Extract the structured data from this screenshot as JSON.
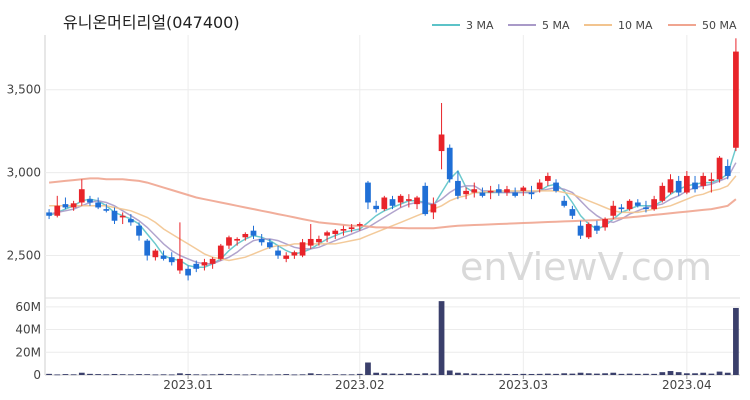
{
  "chart_data": {
    "title": "유니온머티리얼(047400)",
    "watermark": "enViewV.com",
    "legend": [
      {
        "label": "3 MA",
        "color": "#5cc3c8"
      },
      {
        "label": "5 MA",
        "color": "#a99ac8"
      },
      {
        "label": "10 MA",
        "color": "#f2c48f"
      },
      {
        "label": "50 MA",
        "color": "#f0a590"
      }
    ],
    "price_axis": {
      "ticks": [
        "2,500",
        "3,000",
        "3,500"
      ],
      "tick_values": [
        2500,
        3000,
        3500
      ],
      "ylim": [
        2250,
        3830
      ]
    },
    "volume_axis": {
      "ticks": [
        "0",
        "20M",
        "40M",
        "60M"
      ],
      "tick_values": [
        0,
        20,
        40,
        60
      ],
      "unit": "M",
      "ylim": [
        0,
        66
      ]
    },
    "x_axis": {
      "ticks": [
        "2023.01",
        "2023.02",
        "2023.03",
        "2023.04"
      ],
      "tick_index": [
        17,
        38,
        58,
        78
      ]
    },
    "colors": {
      "up": "#e8242a",
      "down": "#1f6fd6",
      "volume": "#3a3f6b",
      "grid": "#ececec",
      "text": "#444444"
    },
    "type": "candlestick",
    "candles": [
      [
        2760,
        2780,
        2720,
        2740
      ],
      [
        2740,
        2860,
        2730,
        2800
      ],
      [
        2810,
        2850,
        2780,
        2790
      ],
      [
        2790,
        2830,
        2770,
        2815
      ],
      [
        2820,
        2960,
        2800,
        2900
      ],
      [
        2840,
        2860,
        2800,
        2820
      ],
      [
        2820,
        2850,
        2780,
        2790
      ],
      [
        2780,
        2810,
        2760,
        2770
      ],
      [
        2770,
        2790,
        2690,
        2710
      ],
      [
        2730,
        2760,
        2690,
        2740
      ],
      [
        2720,
        2750,
        2680,
        2700
      ],
      [
        2680,
        2700,
        2590,
        2620
      ],
      [
        2590,
        2600,
        2470,
        2500
      ],
      [
        2490,
        2540,
        2470,
        2530
      ],
      [
        2500,
        2530,
        2470,
        2480
      ],
      [
        2490,
        2520,
        2440,
        2460
      ],
      [
        2410,
        2700,
        2390,
        2480
      ],
      [
        2420,
        2440,
        2350,
        2380
      ],
      [
        2450,
        2470,
        2400,
        2420
      ],
      [
        2440,
        2480,
        2410,
        2460
      ],
      [
        2450,
        2490,
        2420,
        2480
      ],
      [
        2480,
        2570,
        2470,
        2560
      ],
      [
        2560,
        2620,
        2540,
        2610
      ],
      [
        2590,
        2610,
        2560,
        2600
      ],
      [
        2610,
        2640,
        2590,
        2630
      ],
      [
        2650,
        2680,
        2600,
        2620
      ],
      [
        2600,
        2630,
        2560,
        2580
      ],
      [
        2580,
        2600,
        2540,
        2550
      ],
      [
        2530,
        2560,
        2480,
        2500
      ],
      [
        2480,
        2520,
        2460,
        2500
      ],
      [
        2500,
        2530,
        2480,
        2520
      ],
      [
        2500,
        2600,
        2490,
        2580
      ],
      [
        2560,
        2690,
        2540,
        2600
      ],
      [
        2580,
        2620,
        2560,
        2600
      ],
      [
        2620,
        2650,
        2580,
        2640
      ],
      [
        2630,
        2660,
        2600,
        2650
      ],
      [
        2650,
        2680,
        2620,
        2660
      ],
      [
        2660,
        2690,
        2640,
        2670
      ],
      [
        2680,
        2700,
        2650,
        2690
      ],
      [
        2940,
        2950,
        2780,
        2820
      ],
      [
        2800,
        2830,
        2760,
        2780
      ],
      [
        2780,
        2860,
        2770,
        2850
      ],
      [
        2840,
        2860,
        2780,
        2800
      ],
      [
        2820,
        2870,
        2790,
        2860
      ],
      [
        2830,
        2870,
        2790,
        2840
      ],
      [
        2810,
        2860,
        2780,
        2850
      ],
      [
        2920,
        2940,
        2740,
        2750
      ],
      [
        2760,
        2850,
        2720,
        2810
      ],
      [
        3130,
        3420,
        3020,
        3230
      ],
      [
        3150,
        3170,
        2940,
        2960
      ],
      [
        2950,
        3010,
        2840,
        2860
      ],
      [
        2870,
        2910,
        2840,
        2890
      ],
      [
        2880,
        2940,
        2850,
        2900
      ],
      [
        2880,
        2910,
        2850,
        2860
      ],
      [
        2880,
        2920,
        2840,
        2890
      ],
      [
        2900,
        2930,
        2860,
        2880
      ],
      [
        2880,
        2920,
        2860,
        2900
      ],
      [
        2880,
        2910,
        2850,
        2860
      ],
      [
        2890,
        2920,
        2860,
        2910
      ],
      [
        2880,
        2920,
        2840,
        2870
      ],
      [
        2900,
        2960,
        2880,
        2940
      ],
      [
        2950,
        3000,
        2920,
        2980
      ],
      [
        2940,
        2960,
        2880,
        2890
      ],
      [
        2830,
        2860,
        2790,
        2800
      ],
      [
        2780,
        2800,
        2720,
        2740
      ],
      [
        2680,
        2710,
        2600,
        2620
      ],
      [
        2610,
        2700,
        2600,
        2690
      ],
      [
        2680,
        2710,
        2630,
        2650
      ],
      [
        2670,
        2730,
        2650,
        2720
      ],
      [
        2740,
        2830,
        2720,
        2800
      ],
      [
        2790,
        2810,
        2760,
        2780
      ],
      [
        2780,
        2840,
        2770,
        2830
      ],
      [
        2820,
        2840,
        2790,
        2800
      ],
      [
        2790,
        2830,
        2760,
        2780
      ],
      [
        2780,
        2860,
        2770,
        2840
      ],
      [
        2830,
        2940,
        2820,
        2920
      ],
      [
        2880,
        2990,
        2870,
        2960
      ],
      [
        2950,
        2980,
        2860,
        2880
      ],
      [
        2880,
        3010,
        2870,
        2980
      ],
      [
        2940,
        2980,
        2880,
        2900
      ],
      [
        2920,
        3000,
        2900,
        2980
      ],
      [
        2950,
        3000,
        2880,
        2960
      ],
      [
        2960,
        3100,
        2940,
        3090
      ],
      [
        3040,
        3080,
        2960,
        2980
      ],
      [
        3150,
        3810,
        3130,
        3730
      ]
    ],
    "ma3": [
      2740,
      2760,
      2780,
      2800,
      2830,
      2840,
      2830,
      2800,
      2760,
      2740,
      2720,
      2690,
      2630,
      2570,
      2500,
      2480,
      2470,
      2440,
      2430,
      2430,
      2450,
      2480,
      2530,
      2570,
      2600,
      2620,
      2610,
      2590,
      2560,
      2530,
      2510,
      2520,
      2540,
      2570,
      2600,
      2620,
      2640,
      2650,
      2660,
      2700,
      2740,
      2770,
      2790,
      2810,
      2830,
      2830,
      2820,
      2800,
      2880,
      2960,
      3010,
      2910,
      2880,
      2880,
      2880,
      2880,
      2880,
      2880,
      2880,
      2880,
      2890,
      2920,
      2930,
      2890,
      2820,
      2740,
      2690,
      2660,
      2680,
      2720,
      2760,
      2780,
      2800,
      2800,
      2800,
      2830,
      2870,
      2900,
      2920,
      2930,
      2940,
      2940,
      2960,
      2990,
      3150
    ],
    "ma5": [
      2750,
      2760,
      2770,
      2780,
      2800,
      2820,
      2830,
      2820,
      2800,
      2770,
      2740,
      2710,
      2670,
      2620,
      2570,
      2530,
      2500,
      2480,
      2460,
      2450,
      2450,
      2470,
      2490,
      2520,
      2560,
      2590,
      2600,
      2600,
      2590,
      2570,
      2550,
      2540,
      2540,
      2550,
      2570,
      2590,
      2610,
      2630,
      2650,
      2670,
      2700,
      2730,
      2760,
      2790,
      2810,
      2820,
      2820,
      2810,
      2840,
      2880,
      2910,
      2920,
      2920,
      2890,
      2890,
      2880,
      2880,
      2880,
      2880,
      2880,
      2890,
      2900,
      2910,
      2900,
      2880,
      2830,
      2780,
      2740,
      2710,
      2700,
      2720,
      2750,
      2770,
      2790,
      2800,
      2810,
      2840,
      2860,
      2890,
      2910,
      2920,
      2930,
      2950,
      2970,
      3060
    ],
    "ma10": [
      2800,
      2800,
      2800,
      2800,
      2800,
      2800,
      2800,
      2800,
      2790,
      2780,
      2770,
      2750,
      2730,
      2700,
      2660,
      2630,
      2600,
      2570,
      2540,
      2510,
      2490,
      2480,
      2470,
      2480,
      2490,
      2510,
      2530,
      2550,
      2560,
      2560,
      2570,
      2570,
      2570,
      2570,
      2570,
      2570,
      2580,
      2590,
      2600,
      2620,
      2640,
      2660,
      2680,
      2700,
      2720,
      2740,
      2760,
      2780,
      2800,
      2830,
      2850,
      2860,
      2880,
      2880,
      2890,
      2890,
      2890,
      2890,
      2890,
      2890,
      2890,
      2890,
      2890,
      2880,
      2870,
      2850,
      2830,
      2810,
      2790,
      2770,
      2760,
      2760,
      2760,
      2770,
      2780,
      2790,
      2800,
      2820,
      2840,
      2860,
      2870,
      2890,
      2900,
      2920,
      2980
    ],
    "ma50": [
      2940,
      2945,
      2950,
      2955,
      2960,
      2965,
      2965,
      2960,
      2960,
      2960,
      2955,
      2950,
      2940,
      2925,
      2910,
      2895,
      2880,
      2865,
      2850,
      2840,
      2830,
      2820,
      2810,
      2800,
      2790,
      2780,
      2770,
      2760,
      2750,
      2740,
      2730,
      2720,
      2710,
      2700,
      2695,
      2690,
      2685,
      2680,
      2680,
      2675,
      2670,
      2670,
      2668,
      2666,
      2665,
      2665,
      2664,
      2665,
      2670,
      2675,
      2680,
      2682,
      2684,
      2686,
      2688,
      2690,
      2692,
      2694,
      2696,
      2698,
      2700,
      2702,
      2704,
      2706,
      2708,
      2710,
      2712,
      2714,
      2718,
      2722,
      2726,
      2730,
      2735,
      2740,
      2745,
      2750,
      2755,
      2760,
      2765,
      2770,
      2775,
      2780,
      2790,
      2800,
      2840
    ],
    "volume": [
      1,
      0.5,
      0.8,
      0.6,
      2,
      1,
      0.8,
      0.6,
      0.9,
      0.7,
      0.6,
      0.8,
      0.7,
      0.5,
      0.6,
      0.5,
      1.5,
      0.9,
      0.6,
      0.5,
      0.6,
      1,
      0.8,
      0.6,
      0.5,
      0.7,
      0.5,
      0.5,
      0.6,
      0.8,
      0.5,
      0.6,
      1.5,
      0.8,
      0.6,
      0.7,
      0.6,
      0.6,
      1,
      11,
      2,
      1.5,
      1.2,
      1,
      1.5,
      1,
      1.5,
      1.2,
      65,
      4,
      2,
      1.5,
      1.2,
      1,
      1,
      1.1,
      1,
      0.9,
      1,
      0.9,
      1,
      1.2,
      1,
      1.5,
      1.2,
      2,
      1.5,
      1.2,
      1.5,
      2,
      1,
      1.2,
      1,
      1.1,
      1,
      2.5,
      3.5,
      2.5,
      1.5,
      1.5,
      2,
      1.2,
      3,
      2,
      59
    ]
  }
}
